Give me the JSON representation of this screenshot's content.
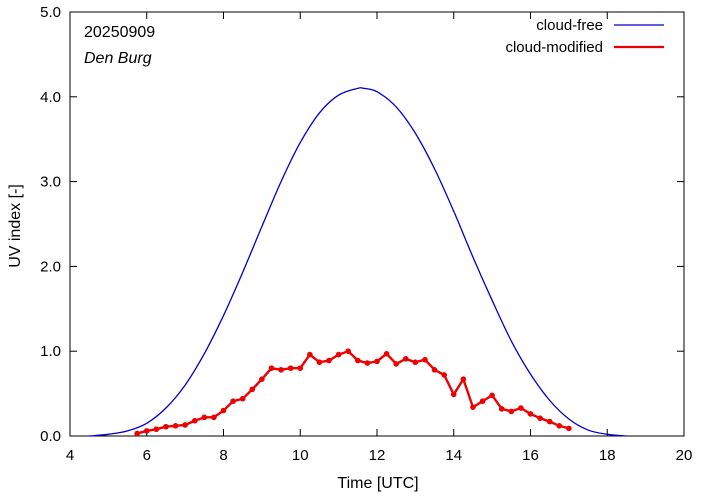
{
  "chart_data": {
    "type": "line",
    "xlabel": "Time  [UTC]",
    "ylabel": "UV index  [-]",
    "xlim": [
      4,
      20
    ],
    "ylim": [
      0,
      5
    ],
    "xticks": [
      4,
      6,
      8,
      10,
      12,
      14,
      16,
      18,
      20
    ],
    "xtick_labels": [
      "4",
      "6",
      "8",
      "10",
      "12",
      "14",
      "16",
      "18",
      "20"
    ],
    "yticks": [
      0,
      1,
      2,
      3,
      4,
      5
    ],
    "ytick_labels": [
      "0.0",
      "1.0",
      "2.0",
      "3.0",
      "4.0",
      "5.0"
    ],
    "grid": false,
    "legend_position": "top-right",
    "annotations": [
      "20250909",
      "Den Burg"
    ],
    "series": [
      {
        "name": "cloud-free",
        "color": "#0000cc",
        "marker": "none",
        "x": [
          4.5,
          5.0,
          5.5,
          6.0,
          6.5,
          7.0,
          7.5,
          8.0,
          8.5,
          9.0,
          9.5,
          10.0,
          10.5,
          11.0,
          11.5,
          11.65,
          12.0,
          12.5,
          13.0,
          13.5,
          14.0,
          14.5,
          15.0,
          15.5,
          16.0,
          16.5,
          17.0,
          17.5,
          18.0,
          18.5
        ],
        "y": [
          0.0,
          0.02,
          0.06,
          0.15,
          0.33,
          0.6,
          0.97,
          1.42,
          1.93,
          2.47,
          3.0,
          3.46,
          3.81,
          4.02,
          4.1,
          4.1,
          4.06,
          3.88,
          3.57,
          3.15,
          2.65,
          2.11,
          1.6,
          1.12,
          0.73,
          0.42,
          0.2,
          0.07,
          0.02,
          0.0
        ]
      },
      {
        "name": "cloud-modified",
        "color": "#ee0000",
        "marker": "circle",
        "x": [
          5.75,
          6.0,
          6.25,
          6.5,
          6.75,
          7.0,
          7.25,
          7.5,
          7.75,
          8.0,
          8.25,
          8.5,
          8.75,
          9.0,
          9.25,
          9.5,
          9.75,
          10.0,
          10.25,
          10.5,
          10.75,
          11.0,
          11.25,
          11.5,
          11.75,
          12.0,
          12.25,
          12.5,
          12.75,
          13.0,
          13.25,
          13.5,
          13.75,
          14.0,
          14.25,
          14.5,
          14.75,
          15.0,
          15.25,
          15.5,
          15.75,
          16.0,
          16.25,
          16.5,
          16.75,
          17.0
        ],
        "y": [
          0.03,
          0.06,
          0.08,
          0.11,
          0.12,
          0.13,
          0.18,
          0.22,
          0.22,
          0.3,
          0.41,
          0.44,
          0.55,
          0.67,
          0.8,
          0.78,
          0.8,
          0.8,
          0.96,
          0.87,
          0.89,
          0.96,
          1.0,
          0.89,
          0.86,
          0.88,
          0.97,
          0.85,
          0.91,
          0.87,
          0.9,
          0.78,
          0.72,
          0.49,
          0.67,
          0.34,
          0.41,
          0.48,
          0.32,
          0.29,
          0.33,
          0.26,
          0.21,
          0.17,
          0.12,
          0.09
        ]
      }
    ]
  }
}
